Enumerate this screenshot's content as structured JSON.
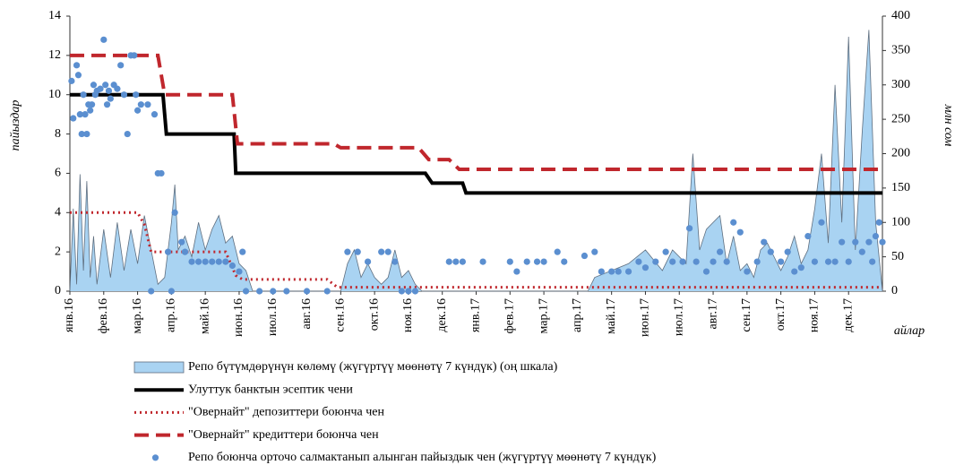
{
  "chart_data": {
    "type": "combo",
    "y_label": "пайыздар",
    "y2_label": "млн сом",
    "x_label": "айлар",
    "xlim": [
      0,
      24
    ],
    "xticks": [
      {
        "value": 0,
        "label": "янв.16"
      },
      {
        "value": 1,
        "label": "фев.16"
      },
      {
        "value": 2,
        "label": "мар.16"
      },
      {
        "value": 3,
        "label": "апр.16"
      },
      {
        "value": 4,
        "label": "май.16"
      },
      {
        "value": 5,
        "label": "июн.16"
      },
      {
        "value": 6,
        "label": "июл.16"
      },
      {
        "value": 7,
        "label": "авг.16"
      },
      {
        "value": 8,
        "label": "сен.16"
      },
      {
        "value": 9,
        "label": "окт.16"
      },
      {
        "value": 10,
        "label": "ноя.16"
      },
      {
        "value": 11,
        "label": "дек.16"
      },
      {
        "value": 12,
        "label": "янв.17"
      },
      {
        "value": 13,
        "label": "фев.17"
      },
      {
        "value": 14,
        "label": "мар.17"
      },
      {
        "value": 15,
        "label": "апр.17"
      },
      {
        "value": 16,
        "label": "май.17"
      },
      {
        "value": 17,
        "label": "июн.17"
      },
      {
        "value": 18,
        "label": "июл.17"
      },
      {
        "value": 19,
        "label": "авг.17"
      },
      {
        "value": 20,
        "label": "сен.17"
      },
      {
        "value": 21,
        "label": "окт.17"
      },
      {
        "value": 22,
        "label": "ноя.17"
      },
      {
        "value": 23,
        "label": "дек.17"
      }
    ],
    "ylim": [
      0,
      14
    ],
    "yticks": [
      0,
      2,
      4,
      6,
      8,
      10,
      12,
      14
    ],
    "y2lim": [
      0,
      400
    ],
    "y2ticks": [
      0,
      50,
      100,
      150,
      200,
      250,
      300,
      350,
      400
    ],
    "series": [
      {
        "name": "Репо бүтүмдөрүнүн көлөмү (жүгүртүү мөөнөтү 7 күндүк) (оң шкала)",
        "type": "area",
        "axis": "y2",
        "color": "#a9d3f2",
        "line_color": "#5f6f80",
        "x": [
          0,
          0.1,
          0.2,
          0.3,
          0.4,
          0.5,
          0.6,
          0.7,
          0.8,
          1.0,
          1.2,
          1.4,
          1.6,
          1.8,
          2.0,
          2.2,
          2.4,
          2.6,
          2.8,
          3.0,
          3.1,
          3.2,
          3.4,
          3.6,
          3.8,
          4.0,
          4.2,
          4.4,
          4.6,
          4.8,
          5.0,
          5.2,
          5.4,
          8.0,
          8.2,
          8.4,
          8.6,
          8.8,
          9.0,
          9.2,
          9.4,
          9.6,
          9.8,
          10.0,
          10.2,
          10.4,
          15.3,
          15.5,
          16.0,
          16.5,
          17.0,
          17.5,
          17.8,
          18.2,
          18.4,
          18.6,
          18.8,
          19.2,
          19.4,
          19.6,
          19.8,
          20.0,
          20.2,
          20.4,
          20.6,
          20.8,
          21.0,
          21.2,
          21.4,
          21.6,
          21.8,
          22.0,
          22.2,
          22.4,
          22.6,
          22.8,
          23.0,
          23.2,
          23.4,
          23.6,
          23.8,
          24.0
        ],
        "values": [
          0,
          120,
          10,
          170,
          30,
          160,
          20,
          80,
          10,
          90,
          20,
          100,
          30,
          90,
          40,
          110,
          60,
          10,
          20,
          100,
          155,
          60,
          80,
          50,
          100,
          60,
          90,
          110,
          70,
          80,
          40,
          30,
          0,
          0,
          40,
          60,
          20,
          40,
          20,
          10,
          20,
          60,
          20,
          30,
          10,
          0,
          0,
          20,
          30,
          40,
          60,
          30,
          60,
          40,
          200,
          60,
          90,
          110,
          40,
          80,
          30,
          40,
          20,
          60,
          70,
          50,
          30,
          50,
          80,
          40,
          60,
          120,
          200,
          70,
          300,
          100,
          370,
          60,
          230,
          380,
          100,
          0
        ]
      },
      {
        "name": "Улуттук банктын эсептик чени",
        "type": "line",
        "axis": "y",
        "color": "#000000",
        "style": "solid",
        "width": 4,
        "x": [
          0,
          2.75,
          2.85,
          4.85,
          4.9,
          10.5,
          10.7,
          11.6,
          11.7,
          24
        ],
        "values": [
          10,
          10,
          8,
          8,
          6,
          6,
          5.5,
          5.5,
          5,
          5
        ]
      },
      {
        "name": "\"Овернайт\" депозиттери боюнча чен",
        "type": "line",
        "axis": "y",
        "color": "#c0272d",
        "style": "dotted",
        "width": 3,
        "x": [
          0,
          2.0,
          2.2,
          2.4,
          4.6,
          4.9,
          5.1,
          7.6,
          7.9,
          24
        ],
        "values": [
          4,
          4,
          3.4,
          2,
          2,
          0.8,
          0.6,
          0.6,
          0.2,
          0.2
        ]
      },
      {
        "name": "\"Овернайт\" кредиттери боюнча чен",
        "type": "line",
        "axis": "y",
        "color": "#c0272d",
        "style": "dashed",
        "width": 4,
        "x": [
          0,
          2.6,
          2.8,
          4.8,
          4.95,
          7.8,
          8.0,
          10.3,
          10.6,
          11.2,
          11.5,
          24
        ],
        "values": [
          12,
          12,
          10,
          10,
          7.5,
          7.5,
          7.3,
          7.3,
          6.7,
          6.7,
          6.2,
          6.2
        ]
      },
      {
        "name": "Репо боюнча орточо салмактанып алынган пайыздык чен (жүгүртүү мөөнөтү 7 күндүк)",
        "type": "scatter",
        "axis": "y",
        "color": "#5b8fd0",
        "x": [
          0.05,
          0.1,
          0.2,
          0.25,
          0.3,
          0.35,
          0.4,
          0.45,
          0.5,
          0.55,
          0.6,
          0.65,
          0.7,
          0.75,
          0.8,
          0.9,
          1.0,
          1.05,
          1.1,
          1.15,
          1.2,
          1.3,
          1.4,
          1.5,
          1.6,
          1.7,
          1.8,
          1.9,
          1.95,
          2.0,
          2.1,
          2.3,
          2.5,
          2.6,
          2.7,
          2.4,
          2.9,
          3.0,
          3.1,
          3.3,
          3.4,
          3.6,
          3.8,
          4.0,
          4.2,
          4.4,
          4.6,
          4.8,
          5.0,
          5.1,
          5.2,
          5.6,
          6.0,
          6.4,
          7.0,
          7.6,
          8.2,
          8.5,
          8.8,
          9.2,
          9.4,
          9.6,
          9.8,
          10.0,
          10.2,
          11.2,
          11.4,
          11.6,
          12.2,
          13.0,
          13.2,
          13.5,
          13.8,
          14.0,
          14.4,
          14.6,
          15.2,
          15.5,
          15.7,
          16.0,
          16.2,
          16.5,
          16.8,
          17.0,
          17.3,
          17.6,
          17.8,
          18.1,
          18.3,
          18.5,
          18.8,
          19.0,
          19.2,
          19.4,
          19.6,
          19.8,
          20.0,
          20.3,
          20.5,
          20.7,
          21.0,
          21.2,
          21.4,
          21.6,
          21.8,
          22.0,
          22.2,
          22.4,
          22.6,
          22.8,
          23.0,
          23.2,
          23.4,
          23.6,
          23.7,
          23.8,
          23.9,
          24.0
        ],
        "values": [
          10.7,
          8.8,
          11.5,
          11,
          9,
          8,
          10,
          9,
          8,
          9.5,
          9.2,
          9.5,
          10.5,
          10,
          10.2,
          10.3,
          12.8,
          10.5,
          9.5,
          10.2,
          9.8,
          10.5,
          10.3,
          11.5,
          10,
          8,
          12,
          12,
          10,
          9.2,
          9.5,
          9.5,
          9,
          6,
          6,
          0,
          2,
          0,
          4,
          2.5,
          2,
          1.5,
          1.5,
          1.5,
          1.5,
          1.5,
          1.5,
          1.3,
          1,
          2,
          0,
          0,
          0,
          0,
          0,
          0,
          2,
          2,
          1.5,
          2,
          2,
          1.5,
          0,
          0,
          0,
          1.5,
          1.5,
          1.5,
          1.5,
          1.5,
          1,
          1.5,
          1.5,
          1.5,
          2,
          1.5,
          1.8,
          2,
          1,
          1,
          1,
          1,
          1.5,
          1.2,
          1.5,
          2,
          1.5,
          1.5,
          3.2,
          1.5,
          1,
          1.5,
          2,
          1.5,
          3.5,
          3,
          1,
          1.5,
          2.5,
          2,
          1.5,
          2,
          1,
          1.2,
          2.8,
          1.5,
          3.5,
          1.5,
          1.5,
          2.5,
          1.5,
          2.5,
          2,
          2.5,
          1.5,
          2.8,
          3.5,
          2.5
        ]
      }
    ]
  }
}
